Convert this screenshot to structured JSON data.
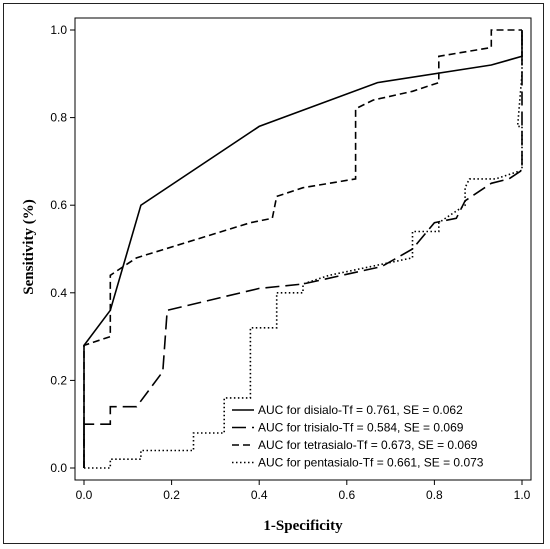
{
  "chart_data": {
    "type": "line",
    "title": "",
    "xlabel": "1-Specificity",
    "ylabel": "Sensitivity (%)",
    "xlim": [
      0,
      1
    ],
    "ylim": [
      0,
      1
    ],
    "x_ticks": [
      "0.0",
      "0.2",
      "0.4",
      "0.6",
      "0.8",
      "1.0"
    ],
    "y_ticks": [
      "0.0",
      "0.2",
      "0.4",
      "0.6",
      "0.8",
      "1.0"
    ],
    "grid": false,
    "legend_position": "bottom-right",
    "series": [
      {
        "name": "AUC for disialo-Tf = 0.761, SE = 0.062",
        "style": "solid",
        "color": "#000000",
        "points": [
          [
            0.0,
            0.0
          ],
          [
            0.0,
            0.28
          ],
          [
            0.06,
            0.36
          ],
          [
            0.13,
            0.6
          ],
          [
            0.4,
            0.78
          ],
          [
            0.67,
            0.88
          ],
          [
            0.93,
            0.92
          ],
          [
            1.0,
            0.94
          ],
          [
            1.0,
            1.0
          ]
        ]
      },
      {
        "name": "AUC for trisialo-Tf = 0.584, SE = 0.069",
        "style": "longdash",
        "color": "#000000",
        "points": [
          [
            0.0,
            0.0
          ],
          [
            0.0,
            0.1
          ],
          [
            0.06,
            0.1
          ],
          [
            0.06,
            0.14
          ],
          [
            0.12,
            0.14
          ],
          [
            0.18,
            0.22
          ],
          [
            0.19,
            0.36
          ],
          [
            0.4,
            0.41
          ],
          [
            0.5,
            0.42
          ],
          [
            0.68,
            0.46
          ],
          [
            0.75,
            0.5
          ],
          [
            0.8,
            0.56
          ],
          [
            0.85,
            0.57
          ],
          [
            0.87,
            0.61
          ],
          [
            0.93,
            0.65
          ],
          [
            0.97,
            0.66
          ],
          [
            1.0,
            0.68
          ],
          [
            1.0,
            1.0
          ]
        ]
      },
      {
        "name": "AUC for tetrasialo-Tf = 0.673, SE = 0.069",
        "style": "dash",
        "color": "#000000",
        "points": [
          [
            0.0,
            0.0
          ],
          [
            0.0,
            0.28
          ],
          [
            0.06,
            0.3
          ],
          [
            0.06,
            0.44
          ],
          [
            0.09,
            0.46
          ],
          [
            0.12,
            0.48
          ],
          [
            0.38,
            0.56
          ],
          [
            0.43,
            0.57
          ],
          [
            0.44,
            0.62
          ],
          [
            0.5,
            0.64
          ],
          [
            0.62,
            0.66
          ],
          [
            0.62,
            0.82
          ],
          [
            0.66,
            0.84
          ],
          [
            0.75,
            0.86
          ],
          [
            0.81,
            0.88
          ],
          [
            0.81,
            0.94
          ],
          [
            0.93,
            0.96
          ],
          [
            0.93,
            1.0
          ],
          [
            1.0,
            1.0
          ]
        ]
      },
      {
        "name": "AUC for pentasialo-Tf = 0.661, SE = 0.073",
        "style": "dotted",
        "color": "#000000",
        "points": [
          [
            0.0,
            0.0
          ],
          [
            0.0,
            0.0
          ],
          [
            0.06,
            0.0
          ],
          [
            0.06,
            0.02
          ],
          [
            0.13,
            0.02
          ],
          [
            0.13,
            0.04
          ],
          [
            0.25,
            0.04
          ],
          [
            0.25,
            0.08
          ],
          [
            0.32,
            0.08
          ],
          [
            0.32,
            0.16
          ],
          [
            0.38,
            0.16
          ],
          [
            0.38,
            0.32
          ],
          [
            0.44,
            0.32
          ],
          [
            0.44,
            0.4
          ],
          [
            0.5,
            0.4
          ],
          [
            0.5,
            0.42
          ],
          [
            0.56,
            0.44
          ],
          [
            0.75,
            0.48
          ],
          [
            0.75,
            0.54
          ],
          [
            0.81,
            0.54
          ],
          [
            0.81,
            0.56
          ],
          [
            0.87,
            0.6
          ],
          [
            0.87,
            0.64
          ],
          [
            0.88,
            0.66
          ],
          [
            0.94,
            0.66
          ],
          [
            1.0,
            0.68
          ],
          [
            1.0,
            0.78
          ],
          [
            0.99,
            0.78
          ],
          [
            1.0,
            0.9
          ],
          [
            1.0,
            1.0
          ]
        ]
      }
    ]
  }
}
